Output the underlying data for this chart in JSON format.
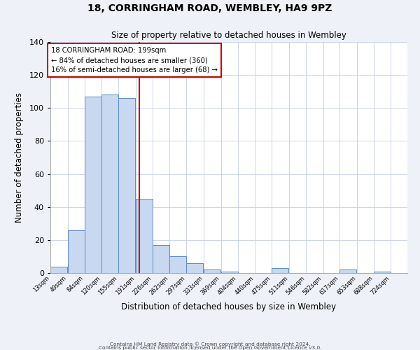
{
  "title": "18, CORRINGHAM ROAD, WEMBLEY, HA9 9PZ",
  "subtitle": "Size of property relative to detached houses in Wembley",
  "xlabel": "Distribution of detached houses by size in Wembley",
  "ylabel": "Number of detached properties",
  "bar_left_edges": [
    13,
    49,
    84,
    120,
    155,
    191,
    226,
    262,
    297,
    333,
    369,
    404,
    440,
    475,
    511,
    546,
    582,
    617,
    653,
    688
  ],
  "bar_heights": [
    4,
    26,
    107,
    108,
    106,
    45,
    17,
    10,
    6,
    2,
    1,
    0,
    0,
    3,
    0,
    0,
    0,
    2,
    0,
    1
  ],
  "bin_width": 35,
  "bar_color": "#c8d8f0",
  "bar_edge_color": "#5a8ac6",
  "vline_x": 199,
  "vline_color": "#cc0000",
  "annotation_text_line1": "18 CORRINGHAM ROAD: 199sqm",
  "annotation_text_line2": "← 84% of detached houses are smaller (360)",
  "annotation_text_line3": "16% of semi-detached houses are larger (68) →",
  "annotation_box_color": "#cc0000",
  "tick_labels": [
    "13sqm",
    "49sqm",
    "84sqm",
    "120sqm",
    "155sqm",
    "191sqm",
    "226sqm",
    "262sqm",
    "297sqm",
    "333sqm",
    "369sqm",
    "404sqm",
    "440sqm",
    "475sqm",
    "511sqm",
    "546sqm",
    "582sqm",
    "617sqm",
    "653sqm",
    "688sqm",
    "724sqm"
  ],
  "ylim": [
    0,
    140
  ],
  "yticks": [
    0,
    20,
    40,
    60,
    80,
    100,
    120,
    140
  ],
  "footer_line1": "Contains HM Land Registry data © Crown copyright and database right 2024.",
  "footer_line2": "Contains public sector information licensed under the Open Government Licence v3.0.",
  "bg_color": "#eef2f8",
  "plot_bg_color": "#ffffff",
  "grid_color": "#c5cfe0"
}
